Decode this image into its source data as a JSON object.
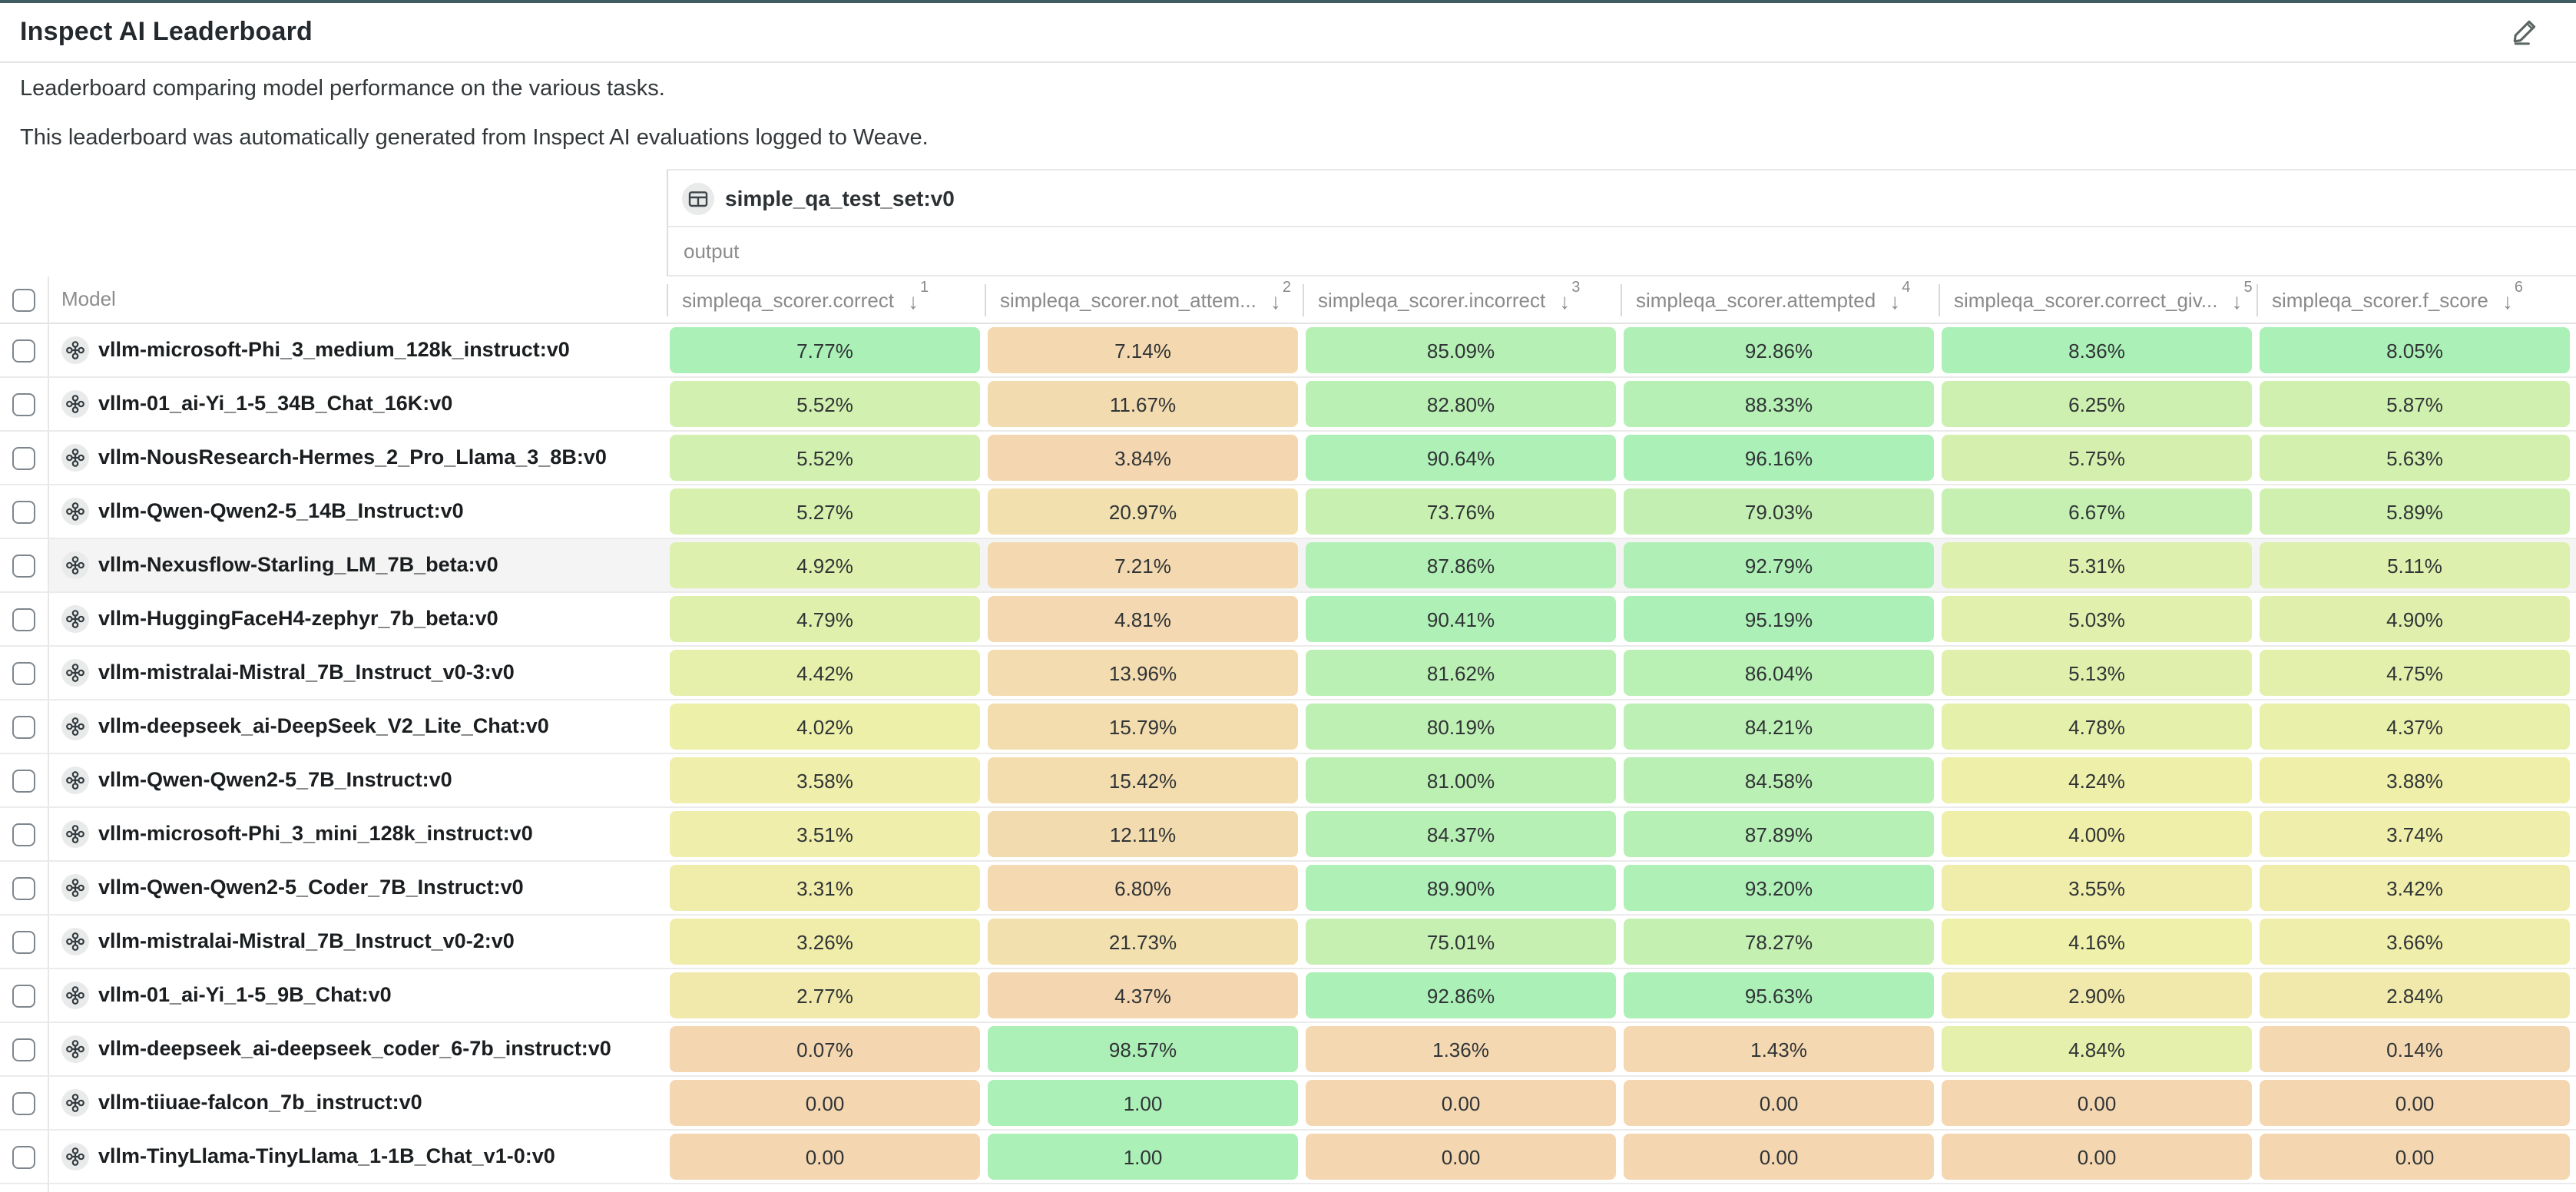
{
  "header": {
    "title": "Inspect AI Leaderboard",
    "edit_icon": "pencil-icon"
  },
  "description": {
    "line1": "Leaderboard comparing model performance on the various tasks.",
    "line2": "This leaderboard was automatically generated from Inspect AI evaluations logged to Weave."
  },
  "colors": {
    "top_bar": "#3e5c61",
    "heatmap_low": "#f4d7b1",
    "heatmap_mid": "#eff0a9",
    "heatmap_high": "#abf0b7"
  },
  "table": {
    "group_header": {
      "icon": "table-icon",
      "label": "simple_qa_test_set:v0",
      "sub_label": "output"
    },
    "model_column_label": "Model",
    "columns": [
      {
        "label": "simpleqa_scorer.correct",
        "sort_order": 1,
        "sort_direction": "desc"
      },
      {
        "label": "simpleqa_scorer.not_attem...",
        "sort_order": 2,
        "sort_direction": "desc"
      },
      {
        "label": "simpleqa_scorer.incorrect",
        "sort_order": 3,
        "sort_direction": "desc"
      },
      {
        "label": "simpleqa_scorer.attempted",
        "sort_order": 4,
        "sort_direction": "desc"
      },
      {
        "label": "simpleqa_scorer.correct_giv...",
        "sort_order": 5,
        "sort_direction": "desc"
      },
      {
        "label": "simpleqa_scorer.f_score",
        "sort_order": 6,
        "sort_direction": "desc"
      }
    ],
    "rows": [
      {
        "model": "vllm-microsoft-Phi_3_medium_128k_instruct:v0",
        "values": [
          "7.77%",
          "7.14%",
          "85.09%",
          "92.86%",
          "8.36%",
          "8.05%"
        ],
        "highlighted": false
      },
      {
        "model": "vllm-01_ai-Yi_1-5_34B_Chat_16K:v0",
        "values": [
          "5.52%",
          "11.67%",
          "82.80%",
          "88.33%",
          "6.25%",
          "5.87%"
        ],
        "highlighted": false
      },
      {
        "model": "vllm-NousResearch-Hermes_2_Pro_Llama_3_8B:v0",
        "values": [
          "5.52%",
          "3.84%",
          "90.64%",
          "96.16%",
          "5.75%",
          "5.63%"
        ],
        "highlighted": false
      },
      {
        "model": "vllm-Qwen-Qwen2-5_14B_Instruct:v0",
        "values": [
          "5.27%",
          "20.97%",
          "73.76%",
          "79.03%",
          "6.67%",
          "5.89%"
        ],
        "highlighted": false
      },
      {
        "model": "vllm-Nexusflow-Starling_LM_7B_beta:v0",
        "values": [
          "4.92%",
          "7.21%",
          "87.86%",
          "92.79%",
          "5.31%",
          "5.11%"
        ],
        "highlighted": true
      },
      {
        "model": "vllm-HuggingFaceH4-zephyr_7b_beta:v0",
        "values": [
          "4.79%",
          "4.81%",
          "90.41%",
          "95.19%",
          "5.03%",
          "4.90%"
        ],
        "highlighted": false
      },
      {
        "model": "vllm-mistralai-Mistral_7B_Instruct_v0-3:v0",
        "values": [
          "4.42%",
          "13.96%",
          "81.62%",
          "86.04%",
          "5.13%",
          "4.75%"
        ],
        "highlighted": false
      },
      {
        "model": "vllm-deepseek_ai-DeepSeek_V2_Lite_Chat:v0",
        "values": [
          "4.02%",
          "15.79%",
          "80.19%",
          "84.21%",
          "4.78%",
          "4.37%"
        ],
        "highlighted": false
      },
      {
        "model": "vllm-Qwen-Qwen2-5_7B_Instruct:v0",
        "values": [
          "3.58%",
          "15.42%",
          "81.00%",
          "84.58%",
          "4.24%",
          "3.88%"
        ],
        "highlighted": false
      },
      {
        "model": "vllm-microsoft-Phi_3_mini_128k_instruct:v0",
        "values": [
          "3.51%",
          "12.11%",
          "84.37%",
          "87.89%",
          "4.00%",
          "3.74%"
        ],
        "highlighted": false
      },
      {
        "model": "vllm-Qwen-Qwen2-5_Coder_7B_Instruct:v0",
        "values": [
          "3.31%",
          "6.80%",
          "89.90%",
          "93.20%",
          "3.55%",
          "3.42%"
        ],
        "highlighted": false
      },
      {
        "model": "vllm-mistralai-Mistral_7B_Instruct_v0-2:v0",
        "values": [
          "3.26%",
          "21.73%",
          "75.01%",
          "78.27%",
          "4.16%",
          "3.66%"
        ],
        "highlighted": false
      },
      {
        "model": "vllm-01_ai-Yi_1-5_9B_Chat:v0",
        "values": [
          "2.77%",
          "4.37%",
          "92.86%",
          "95.63%",
          "2.90%",
          "2.84%"
        ],
        "highlighted": false
      },
      {
        "model": "vllm-deepseek_ai-deepseek_coder_6-7b_instruct:v0",
        "values": [
          "0.07%",
          "98.57%",
          "1.36%",
          "1.43%",
          "4.84%",
          "0.14%"
        ],
        "highlighted": false
      },
      {
        "model": "vllm-tiiuae-falcon_7b_instruct:v0",
        "values": [
          "0.00",
          "1.00",
          "0.00",
          "0.00",
          "0.00",
          "0.00"
        ],
        "highlighted": false
      },
      {
        "model": "vllm-TinyLlama-TinyLlama_1-1B_Chat_v1-0:v0",
        "values": [
          "0.00",
          "1.00",
          "0.00",
          "0.00",
          "0.00",
          "0.00"
        ],
        "highlighted": false
      }
    ]
  }
}
